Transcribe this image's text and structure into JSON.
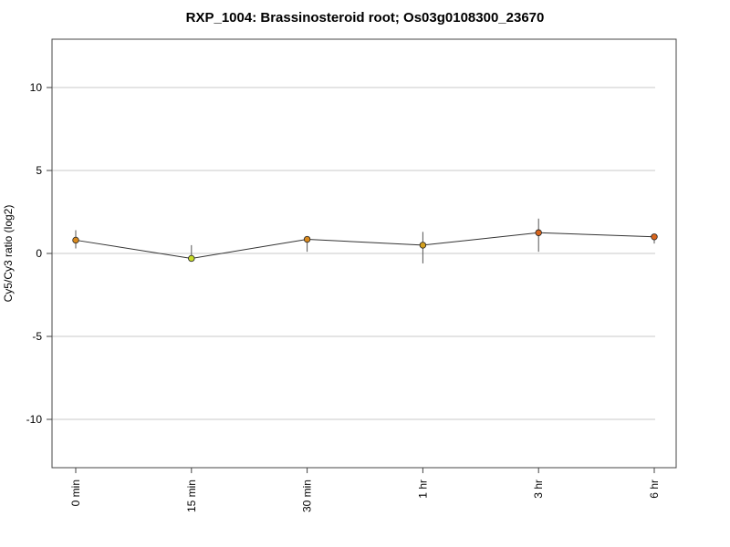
{
  "chart_data": {
    "type": "line",
    "title": "RXP_1004: Brassinosteroid root; Os03g0108300_23670",
    "xlabel": "",
    "ylabel": "Cy5/Cy3 ratio (log2)",
    "categories": [
      "0 min",
      "15 min",
      "30 min",
      "1 hr",
      "3 hr",
      "6 hr"
    ],
    "ylim": [
      -13,
      13
    ],
    "yticks": [
      10,
      5,
      0,
      -5,
      -10
    ],
    "grid": true,
    "series": [
      {
        "values": [
          0.8,
          -0.3,
          0.85,
          0.5,
          1.25,
          1.0
        ],
        "error_low": [
          0.3,
          -0.5,
          0.1,
          -0.6,
          0.1,
          0.6
        ],
        "error_high": [
          1.4,
          0.5,
          1.0,
          1.3,
          2.1,
          1.15
        ],
        "point_colors": [
          "#d98a1e",
          "#c8dc28",
          "#d98a1e",
          "#d4a020",
          "#d8651c",
          "#d8651c"
        ]
      }
    ]
  }
}
